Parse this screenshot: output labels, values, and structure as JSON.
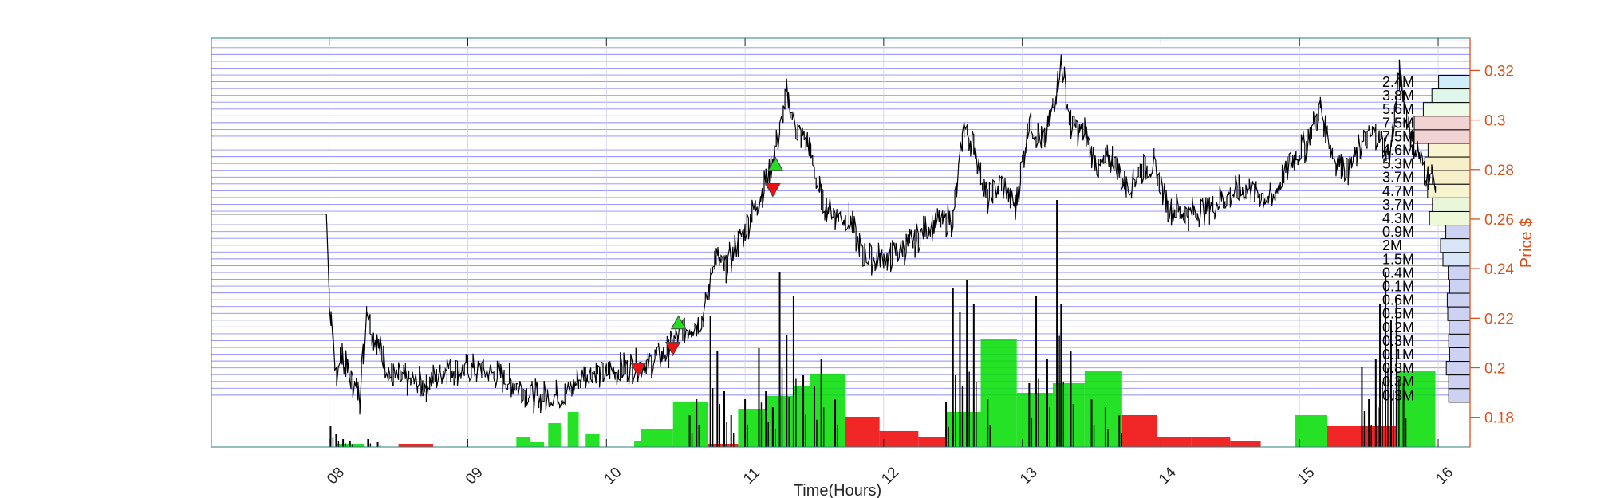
{
  "chart_data": {
    "type": "line",
    "xlabel": "Time(Hours)",
    "ylabel": "Price $",
    "x_ticks": [
      "08",
      "09",
      "10",
      "11",
      "12",
      "13",
      "14",
      "15",
      "16"
    ],
    "y_ticks": [
      "0.18",
      "0.2",
      "0.22",
      "0.24",
      "0.26",
      "0.28",
      "0.3",
      "0.32"
    ],
    "xlim": [
      7.15,
      16.23
    ],
    "ylim": [
      0.168,
      0.333
    ],
    "grid": "horizontal",
    "colors": {
      "price": "#000000",
      "axis_right": "#d95319",
      "grid": "#0000ff",
      "buy_volume": "#00dd00",
      "sell_volume": "#ee0000",
      "frame": "#2a7f7f"
    },
    "price_series": {
      "name": "",
      "points": [
        [
          7.15,
          0.262
        ],
        [
          7.98,
          0.262
        ],
        [
          8.0,
          0.23
        ],
        [
          8.04,
          0.197
        ],
        [
          8.08,
          0.205
        ],
        [
          8.12,
          0.2
        ],
        [
          8.17,
          0.193
        ],
        [
          8.22,
          0.188
        ],
        [
          8.27,
          0.225
        ],
        [
          8.32,
          0.213
        ],
        [
          8.38,
          0.205
        ],
        [
          8.45,
          0.196
        ],
        [
          8.55,
          0.195
        ],
        [
          8.7,
          0.193
        ],
        [
          8.85,
          0.2
        ],
        [
          9.0,
          0.199
        ],
        [
          9.1,
          0.199
        ],
        [
          9.3,
          0.195
        ],
        [
          9.5,
          0.188
        ],
        [
          9.7,
          0.189
        ],
        [
          9.85,
          0.198
        ],
        [
          10.0,
          0.198
        ],
        [
          10.15,
          0.2
        ],
        [
          10.3,
          0.202
        ],
        [
          10.45,
          0.207
        ],
        [
          10.55,
          0.215
        ],
        [
          10.7,
          0.22
        ],
        [
          10.78,
          0.245
        ],
        [
          10.85,
          0.24
        ],
        [
          10.95,
          0.25
        ],
        [
          11.05,
          0.262
        ],
        [
          11.15,
          0.275
        ],
        [
          11.25,
          0.295
        ],
        [
          11.3,
          0.31
        ],
        [
          11.38,
          0.295
        ],
        [
          11.45,
          0.292
        ],
        [
          11.55,
          0.268
        ],
        [
          11.65,
          0.262
        ],
        [
          11.75,
          0.26
        ],
        [
          11.85,
          0.245
        ],
        [
          11.95,
          0.244
        ],
        [
          12.05,
          0.245
        ],
        [
          12.2,
          0.25
        ],
        [
          12.35,
          0.258
        ],
        [
          12.5,
          0.26
        ],
        [
          12.58,
          0.297
        ],
        [
          12.65,
          0.29
        ],
        [
          12.75,
          0.268
        ],
        [
          12.85,
          0.275
        ],
        [
          12.95,
          0.265
        ],
        [
          13.05,
          0.3
        ],
        [
          13.15,
          0.29
        ],
        [
          13.22,
          0.305
        ],
        [
          13.28,
          0.324
        ],
        [
          13.35,
          0.298
        ],
        [
          13.45,
          0.295
        ],
        [
          13.55,
          0.28
        ],
        [
          13.65,
          0.285
        ],
        [
          13.75,
          0.272
        ],
        [
          13.85,
          0.28
        ],
        [
          13.95,
          0.282
        ],
        [
          14.05,
          0.265
        ],
        [
          14.2,
          0.262
        ],
        [
          14.35,
          0.265
        ],
        [
          14.5,
          0.27
        ],
        [
          14.65,
          0.272
        ],
        [
          14.8,
          0.268
        ],
        [
          14.95,
          0.285
        ],
        [
          15.05,
          0.29
        ],
        [
          15.15,
          0.305
        ],
        [
          15.25,
          0.285
        ],
        [
          15.35,
          0.28
        ],
        [
          15.45,
          0.29
        ],
        [
          15.55,
          0.295
        ],
        [
          15.65,
          0.285
        ],
        [
          15.72,
          0.318
        ],
        [
          15.8,
          0.295
        ],
        [
          15.9,
          0.28
        ],
        [
          15.98,
          0.275
        ]
      ]
    },
    "trade_markers": [
      {
        "type": "sell",
        "x": 10.23,
        "y": 0.1995
      },
      {
        "type": "sell",
        "x": 10.48,
        "y": 0.208
      },
      {
        "type": "buy",
        "x": 10.52,
        "y": 0.218
      },
      {
        "type": "sell",
        "x": 11.2,
        "y": 0.272
      },
      {
        "type": "buy",
        "x": 11.22,
        "y": 0.282
      }
    ],
    "volume_profile": {
      "levels": [
        {
          "price": 0.3153,
          "label": "2.4M",
          "value": 2.4
        },
        {
          "price": 0.3098,
          "label": "3.8M",
          "value": 3.8
        },
        {
          "price": 0.3043,
          "label": "5.6M",
          "value": 5.6
        },
        {
          "price": 0.2988,
          "label": "7.5M",
          "value": 7.5
        },
        {
          "price": 0.2933,
          "label": "7.5M",
          "value": 7.5
        },
        {
          "price": 0.2878,
          "label": "4.6M",
          "value": 4.6
        },
        {
          "price": 0.2823,
          "label": "5.3M",
          "value": 5.3
        },
        {
          "price": 0.2768,
          "label": "3.7M",
          "value": 3.7
        },
        {
          "price": 0.2713,
          "label": "4.7M",
          "value": 4.7
        },
        {
          "price": 0.2658,
          "label": "3.7M",
          "value": 3.7
        },
        {
          "price": 0.2603,
          "label": "4.3M",
          "value": 4.3
        },
        {
          "price": 0.2548,
          "label": "0.9M",
          "value": 0.9
        },
        {
          "price": 0.2493,
          "label": "2M",
          "value": 2.0
        },
        {
          "price": 0.2438,
          "label": "1.5M",
          "value": 1.5
        },
        {
          "price": 0.2383,
          "label": "0.4M",
          "value": 0.4
        },
        {
          "price": 0.2328,
          "label": "0.1M",
          "value": 0.1
        },
        {
          "price": 0.2273,
          "label": "0.6M",
          "value": 0.6
        },
        {
          "price": 0.2218,
          "label": "0.5M",
          "value": 0.5
        },
        {
          "price": 0.2163,
          "label": "0.2M",
          "value": 0.2
        },
        {
          "price": 0.2108,
          "label": "0.3M",
          "value": 0.3
        },
        {
          "price": 0.2053,
          "label": "0.1M",
          "value": 0.1
        },
        {
          "price": 0.1998,
          "label": "0.8M",
          "value": 0.8
        },
        {
          "price": 0.1943,
          "label": "0.3M",
          "value": 0.3
        },
        {
          "price": 0.1888,
          "label": "0.3M",
          "value": 0.3
        }
      ],
      "colors": [
        "#cfeef9",
        "#def7ea",
        "#eefbe6",
        "#f2d3d3",
        "#f2d3d3",
        "#f6f5cf",
        "#f6efc9",
        "#f6efc9",
        "#f6f5cf",
        "#e8f6da",
        "#eef9d9",
        "#cdd2f2",
        "#d8e6f7",
        "#d8e6f7",
        "#cdd2f2",
        "#cdd2f2",
        "#cdd2f2",
        "#cdd2f2",
        "#cdd2f2",
        "#cdd2f2",
        "#cdd2f2",
        "#cdd2f2",
        "#cdd2f2",
        "#cdd2f2"
      ]
    },
    "volume_blocks": [
      {
        "x0": 8.05,
        "x1": 8.25,
        "h": 0.02,
        "side": "buy"
      },
      {
        "x0": 8.5,
        "x1": 8.75,
        "h": 0.02,
        "side": "sell"
      },
      {
        "x0": 9.35,
        "x1": 9.45,
        "h": 0.06,
        "side": "buy"
      },
      {
        "x0": 9.45,
        "x1": 9.55,
        "h": 0.03,
        "side": "buy"
      },
      {
        "x0": 9.58,
        "x1": 9.67,
        "h": 0.15,
        "side": "buy"
      },
      {
        "x0": 9.72,
        "x1": 9.8,
        "h": 0.22,
        "side": "buy"
      },
      {
        "x0": 9.85,
        "x1": 9.95,
        "h": 0.08,
        "side": "buy"
      },
      {
        "x0": 10.2,
        "x1": 10.25,
        "h": 0.04,
        "side": "buy"
      },
      {
        "x0": 10.25,
        "x1": 10.48,
        "h": 0.11,
        "side": "buy"
      },
      {
        "x0": 10.48,
        "x1": 10.73,
        "h": 0.28,
        "side": "buy"
      },
      {
        "x0": 10.73,
        "x1": 10.95,
        "h": 0.02,
        "side": "sell"
      },
      {
        "x0": 10.95,
        "x1": 11.15,
        "h": 0.24,
        "side": "buy"
      },
      {
        "x0": 11.15,
        "x1": 11.35,
        "h": 0.32,
        "side": "buy"
      },
      {
        "x0": 11.35,
        "x1": 11.47,
        "h": 0.38,
        "side": "buy"
      },
      {
        "x0": 11.47,
        "x1": 11.72,
        "h": 0.46,
        "side": "buy"
      },
      {
        "x0": 11.72,
        "x1": 11.97,
        "h": 0.19,
        "side": "sell"
      },
      {
        "x0": 11.97,
        "x1": 12.25,
        "h": 0.1,
        "side": "sell"
      },
      {
        "x0": 12.25,
        "x1": 12.45,
        "h": 0.06,
        "side": "sell"
      },
      {
        "x0": 12.45,
        "x1": 12.7,
        "h": 0.22,
        "side": "buy"
      },
      {
        "x0": 12.7,
        "x1": 12.96,
        "h": 0.68,
        "side": "buy"
      },
      {
        "x0": 12.96,
        "x1": 13.22,
        "h": 0.34,
        "side": "buy"
      },
      {
        "x0": 13.22,
        "x1": 13.45,
        "h": 0.4,
        "side": "buy"
      },
      {
        "x0": 13.45,
        "x1": 13.72,
        "h": 0.48,
        "side": "buy"
      },
      {
        "x0": 13.72,
        "x1": 13.97,
        "h": 0.2,
        "side": "sell"
      },
      {
        "x0": 13.97,
        "x1": 14.22,
        "h": 0.06,
        "side": "sell"
      },
      {
        "x0": 14.22,
        "x1": 14.5,
        "h": 0.06,
        "side": "sell"
      },
      {
        "x0": 14.5,
        "x1": 14.72,
        "h": 0.04,
        "side": "sell"
      },
      {
        "x0": 14.97,
        "x1": 15.2,
        "h": 0.2,
        "side": "buy"
      },
      {
        "x0": 15.2,
        "x1": 15.45,
        "h": 0.13,
        "side": "sell"
      },
      {
        "x0": 15.45,
        "x1": 15.7,
        "h": 0.13,
        "side": "sell"
      },
      {
        "x0": 15.7,
        "x1": 15.98,
        "h": 0.48,
        "side": "buy"
      }
    ],
    "volume_spikes": [
      [
        8.01,
        0.13
      ],
      [
        8.05,
        0.08
      ],
      [
        8.1,
        0.05
      ],
      [
        8.15,
        0.04
      ],
      [
        8.28,
        0.05
      ],
      [
        8.35,
        0.03
      ],
      [
        10.6,
        0.2
      ],
      [
        10.65,
        0.3
      ],
      [
        10.75,
        0.82
      ],
      [
        10.8,
        0.6
      ],
      [
        10.85,
        0.35
      ],
      [
        10.9,
        0.2
      ],
      [
        11.0,
        0.3
      ],
      [
        11.1,
        0.62
      ],
      [
        11.15,
        0.35
      ],
      [
        11.2,
        0.25
      ],
      [
        11.25,
        1.1
      ],
      [
        11.3,
        0.7
      ],
      [
        11.35,
        0.95
      ],
      [
        11.42,
        0.45
      ],
      [
        11.5,
        0.38
      ],
      [
        11.55,
        0.55
      ],
      [
        11.65,
        0.3
      ],
      [
        12.45,
        0.28
      ],
      [
        12.5,
        1.0
      ],
      [
        12.55,
        0.85
      ],
      [
        12.6,
        1.05
      ],
      [
        12.65,
        0.9
      ],
      [
        12.75,
        0.3
      ],
      [
        13.05,
        0.4
      ],
      [
        13.1,
        0.95
      ],
      [
        13.18,
        0.55
      ],
      [
        13.25,
        1.55
      ],
      [
        13.28,
        0.9
      ],
      [
        13.35,
        0.6
      ],
      [
        13.5,
        0.3
      ],
      [
        13.6,
        0.25
      ],
      [
        13.7,
        0.2
      ],
      [
        15.45,
        0.5
      ],
      [
        15.5,
        0.3
      ],
      [
        15.55,
        0.55
      ],
      [
        15.58,
        0.9
      ],
      [
        15.62,
        1.1
      ],
      [
        15.66,
        0.8
      ],
      [
        15.7,
        0.95
      ],
      [
        15.75,
        0.4
      ]
    ]
  }
}
